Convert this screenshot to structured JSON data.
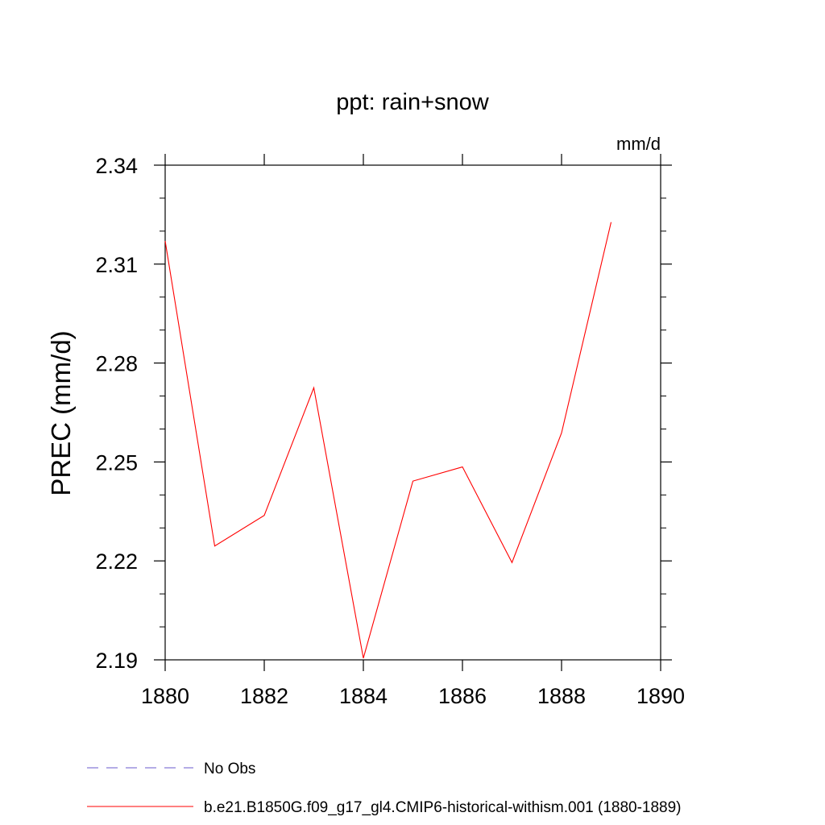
{
  "chart_data": {
    "type": "line",
    "title": "ppt: rain+snow",
    "units": "mm/d",
    "ylabel": "PREC  (mm/d)",
    "xlabel": "",
    "xlim": [
      1880,
      1890
    ],
    "ylim": [
      2.19,
      2.34
    ],
    "x_ticks": [
      1880,
      1882,
      1884,
      1886,
      1888,
      1890
    ],
    "x_tick_labels": [
      "1880",
      "1882",
      "1884",
      "1886",
      "1888",
      "1890"
    ],
    "y_ticks": [
      2.19,
      2.22,
      2.25,
      2.28,
      2.31,
      2.34
    ],
    "y_tick_labels": [
      "2.19",
      "2.22",
      "2.25",
      "2.28",
      "2.31",
      "2.34"
    ],
    "grid": false,
    "legend_position": "bottom",
    "series": [
      {
        "name": "No Obs",
        "color": "#6a5acd",
        "dash": "dashed",
        "x": [],
        "values": []
      },
      {
        "name": "b.e21.B1850G.f09_g17_gl4.CMIP6-historical-withism.001 (1880-1889)",
        "color": "#ff0000",
        "dash": "solid",
        "x": [
          1880,
          1881,
          1882,
          1883,
          1884,
          1885,
          1886,
          1887,
          1888,
          1889
        ],
        "values": [
          2.317,
          2.2245,
          2.2338,
          2.2725,
          2.1905,
          2.2442,
          2.2485,
          2.2195,
          2.2588,
          2.3227
        ]
      }
    ]
  }
}
